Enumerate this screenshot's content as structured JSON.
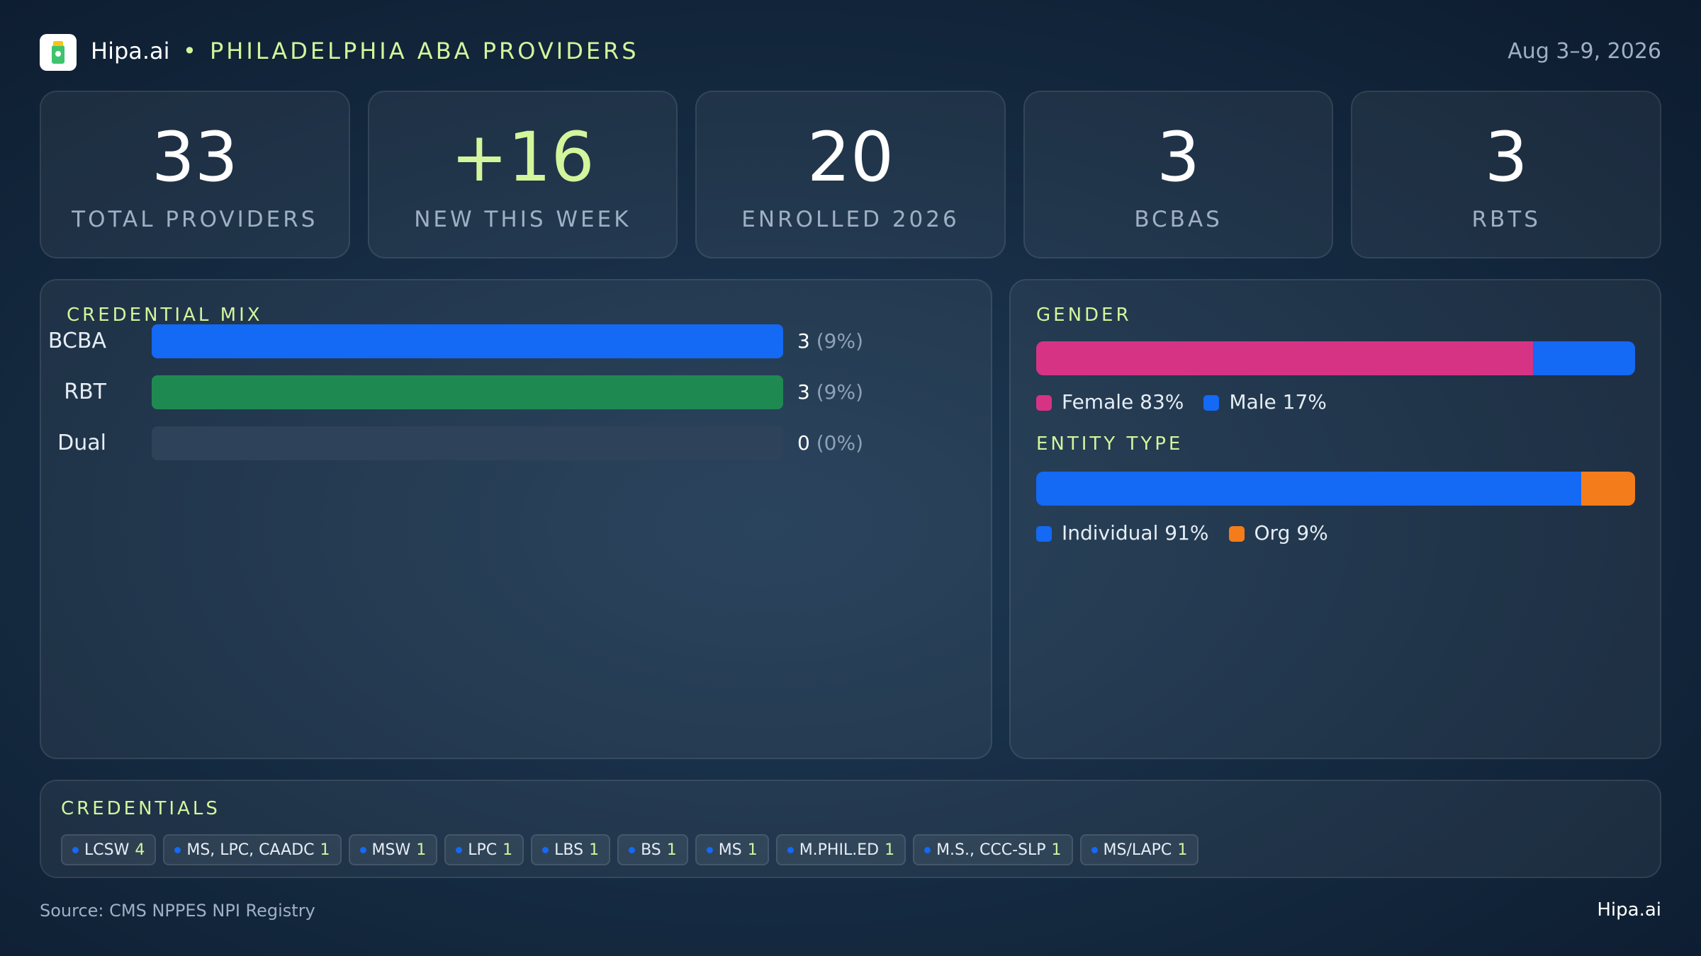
{
  "header": {
    "brand": "Hipa.ai",
    "title": "PHILADELPHIA ABA PROVIDERS",
    "date": "Aug 3–9, 2026"
  },
  "kpis": [
    {
      "value": 33,
      "label": "TOTAL PROVIDERS"
    },
    {
      "value": "+16",
      "label": "NEW THIS WEEK"
    },
    {
      "value": 20,
      "label": "ENROLLED 2026"
    },
    {
      "value": 3,
      "label": "BCBAS"
    },
    {
      "value": 3,
      "label": "RBTS"
    }
  ],
  "credential_mix": {
    "title": "CREDENTIAL MIX",
    "rows": [
      {
        "label": "BCBA",
        "count": 3,
        "share": "(9%)",
        "color": "#1469f5"
      },
      {
        "label": "RBT",
        "count": 3,
        "share": "(9%)",
        "color": "#1e8a52"
      },
      {
        "label": "Dual",
        "count": 0,
        "share": "(0%)",
        "color": "#1469f5"
      }
    ]
  },
  "gender": {
    "title": "GENDER",
    "segments": [
      {
        "name": "Female",
        "value": 83,
        "value_label": "83%",
        "color": "#d63384"
      },
      {
        "name": "Male",
        "value": 17,
        "value_label": "17%",
        "color": "#1469f5"
      }
    ]
  },
  "entity_type": {
    "title": "ENTITY TYPE",
    "segments": [
      {
        "name": "Individual",
        "value": 91,
        "value_label": "91%",
        "color": "#1469f5"
      },
      {
        "name": "Org",
        "value": 9,
        "value_label": "9%",
        "color": "#f57c1a"
      }
    ]
  },
  "credentials": {
    "title": "CREDENTIALS",
    "items": [
      {
        "name": "LCSW",
        "count": 4
      },
      {
        "name": "MS, LPC, CAADC",
        "count": 1
      },
      {
        "name": "MSW",
        "count": 1
      },
      {
        "name": "LPC",
        "count": 1
      },
      {
        "name": "LBS",
        "count": 1
      },
      {
        "name": "BS",
        "count": 1
      },
      {
        "name": "MS",
        "count": 1
      },
      {
        "name": "M.PHIL.ED",
        "count": 1
      },
      {
        "name": "M.S., CCC-SLP",
        "count": 1
      },
      {
        "name": "MS/LAPC",
        "count": 1
      }
    ]
  },
  "footer": {
    "source": "Source: CMS NPPES NPI Registry",
    "brand": "Hipa.ai"
  }
}
